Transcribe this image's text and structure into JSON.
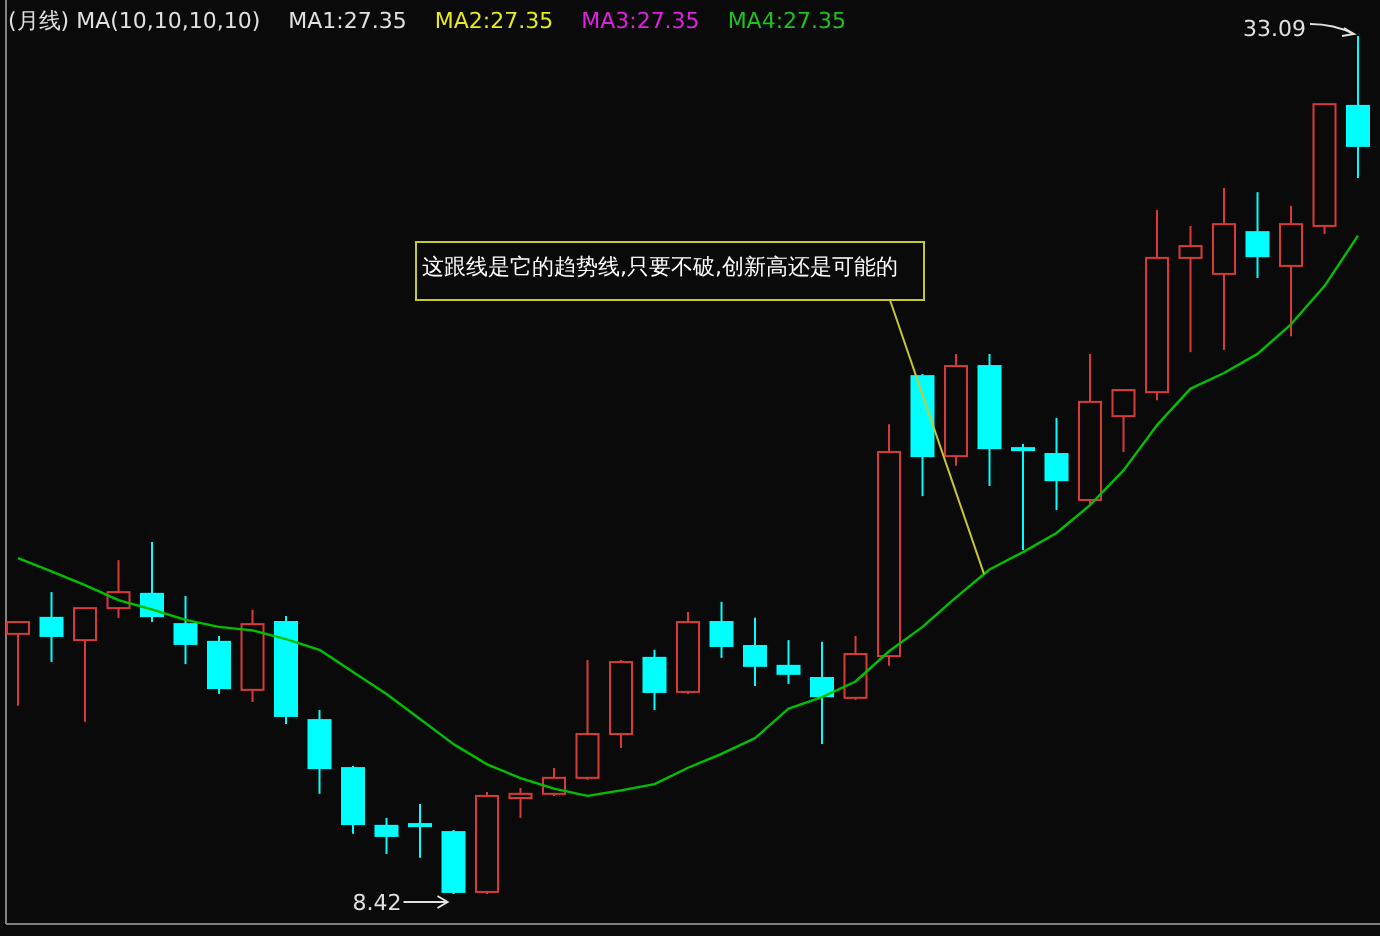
{
  "chart_data": {
    "type": "candlestick",
    "title": "(月线) MA(10,10,10,10)",
    "categories": [
      null,
      null,
      null,
      null,
      null,
      null,
      null,
      null,
      null,
      null,
      null,
      null,
      null,
      null,
      null,
      null,
      null,
      null,
      null,
      null,
      null,
      null,
      null,
      null,
      null,
      null,
      null,
      null,
      null,
      null,
      null,
      null,
      null,
      null,
      null,
      null,
      null,
      null,
      null,
      null,
      null
    ],
    "ohlc": [
      [
        15.9,
        16.24,
        13.83,
        16.24
      ],
      [
        16.36,
        17.1,
        15.09,
        15.84
      ],
      [
        15.72,
        16.64,
        13.37,
        16.64
      ],
      [
        16.64,
        18.02,
        16.36,
        17.1
      ],
      [
        17.05,
        18.54,
        16.24,
        16.41
      ],
      [
        16.18,
        16.99,
        15.03,
        15.61
      ],
      [
        15.67,
        15.84,
        14.17,
        14.34
      ],
      [
        14.29,
        16.59,
        13.94,
        16.18
      ],
      [
        16.24,
        16.41,
        13.31,
        13.54
      ],
      [
        13.42,
        13.71,
        11.3,
        12.04
      ],
      [
        12.04,
        12.1,
        10.15,
        10.43
      ],
      [
        10.38,
        10.61,
        9.57,
        10.09
      ],
      [
        10.43,
        11.01,
        9.46,
        10.38
      ],
      [
        10.2,
        10.26,
        8.42,
        8.48
      ],
      [
        8.48,
        11.35,
        8.42,
        11.24
      ],
      [
        11.18,
        11.47,
        10.61,
        11.3
      ],
      [
        11.3,
        12.04,
        11.24,
        11.76
      ],
      [
        11.76,
        15.15,
        11.7,
        13.02
      ],
      [
        13.02,
        15.15,
        12.62,
        15.09
      ],
      [
        15.21,
        15.44,
        13.71,
        14.23
      ],
      [
        14.23,
        16.53,
        14.17,
        16.24
      ],
      [
        16.24,
        16.82,
        15.21,
        15.55
      ],
      [
        15.55,
        16.36,
        14.4,
        14.98
      ],
      [
        14.98,
        15.72,
        14.46,
        14.75
      ],
      [
        14.63,
        15.67,
        12.73,
        14.11
      ],
      [
        14.06,
        15.84,
        14.0,
        15.32
      ],
      [
        15.26,
        21.93,
        14.98,
        21.13
      ],
      [
        23.31,
        23.37,
        19.86,
        21.01
      ],
      [
        21.01,
        23.95,
        20.73,
        23.6
      ],
      [
        23.6,
        23.95,
        20.15,
        21.24
      ],
      [
        21.24,
        21.36,
        18.31,
        21.24
      ],
      [
        21.07,
        22.11,
        19.46,
        20.32
      ],
      [
        19.75,
        23.95,
        19.63,
        22.57
      ],
      [
        22.16,
        22.91,
        21.13,
        22.91
      ],
      [
        22.85,
        28.09,
        22.62,
        26.71
      ],
      [
        26.71,
        27.63,
        24.0,
        27.05
      ],
      [
        26.25,
        28.72,
        24.06,
        27.68
      ],
      [
        27.45,
        28.6,
        26.13,
        26.76
      ],
      [
        26.48,
        28.2,
        24.46,
        27.68
      ],
      [
        27.63,
        31.13,
        27.4,
        31.13
      ],
      [
        31.08,
        33.09,
        29.01,
        29.93
      ]
    ],
    "series": [
      {
        "type": "line",
        "color": "#00c000",
        "values": [
          18.08,
          17.7,
          17.3,
          16.87,
          16.6,
          16.3,
          16.1,
          16.0,
          15.75,
          15.44,
          14.8,
          14.17,
          13.45,
          12.73,
          12.15,
          11.75,
          11.45,
          11.24,
          11.4,
          11.58,
          12.05,
          12.45,
          12.9,
          13.75,
          14.08,
          14.53,
          15.4,
          16.1,
          16.95,
          17.75,
          18.25,
          18.8,
          19.6,
          20.6,
          21.9,
          22.95,
          23.4,
          23.95,
          24.8,
          25.9,
          27.35
        ]
      }
    ],
    "annotations": [
      "MA1:27.35",
      "MA2:27.35",
      "MA3:27.35",
      "MA4:27.35",
      "这跟线是它的趋势线,只要不破,创新高还是可能的",
      "33.09",
      "8.42"
    ]
  }
}
